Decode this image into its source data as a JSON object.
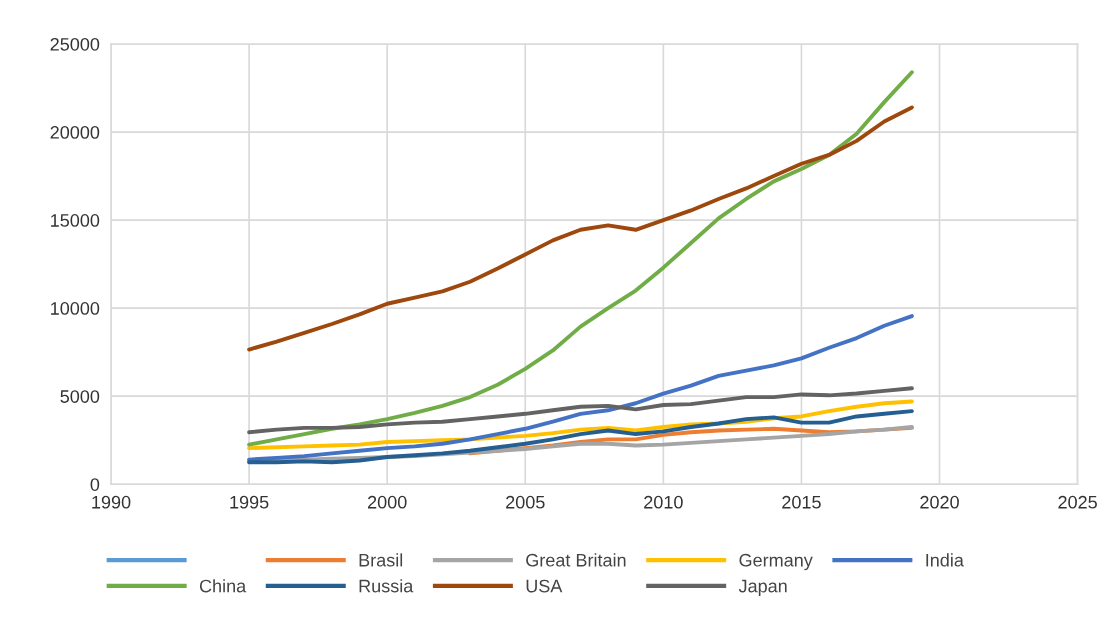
{
  "chart_data": {
    "type": "line",
    "x": [
      1995,
      1996,
      1997,
      1998,
      1999,
      2000,
      2001,
      2002,
      2003,
      2004,
      2005,
      2006,
      2007,
      2008,
      2009,
      2010,
      2011,
      2012,
      2013,
      2014,
      2015,
      2016,
      2017,
      2018,
      2019
    ],
    "series": [
      {
        "color": "#5b9bd5",
        "values": [
          null,
          null,
          null,
          null,
          null,
          null,
          null,
          null,
          null,
          null,
          null,
          null,
          null,
          null,
          null,
          null,
          null,
          null,
          null,
          null,
          null,
          null,
          null,
          null,
          null
        ]
      },
      {
        "name": "Brasil",
        "color": "#ed7d31",
        "values": [
          null,
          null,
          null,
          null,
          null,
          null,
          null,
          null,
          1750,
          1900,
          2050,
          2200,
          2400,
          2550,
          2550,
          2800,
          2950,
          3050,
          3100,
          3150,
          3050,
          2950,
          3000,
          3100,
          3200
        ]
      },
      {
        "name": "Great Britain",
        "color": "#a5a5a5",
        "values": [
          1300,
          1350,
          1400,
          1450,
          1500,
          1550,
          1600,
          1700,
          1800,
          1900,
          2000,
          2150,
          2300,
          2300,
          2200,
          2250,
          2350,
          2450,
          2550,
          2650,
          2750,
          2850,
          3000,
          3100,
          3250
        ]
      },
      {
        "name": "Germany",
        "color": "#ffc000",
        "values": [
          2050,
          2100,
          2150,
          2200,
          2250,
          2400,
          2450,
          2500,
          2550,
          2650,
          2750,
          2900,
          3100,
          3200,
          3050,
          3250,
          3400,
          3450,
          3550,
          3750,
          3850,
          4150,
          4400,
          4600,
          4700
        ]
      },
      {
        "name": "India",
        "color": "#4472c4",
        "values": [
          1400,
          1500,
          1600,
          1750,
          1900,
          2050,
          2150,
          2300,
          2550,
          2850,
          3150,
          3550,
          4000,
          4200,
          4600,
          5150,
          5600,
          6150,
          6450,
          6750,
          7150,
          7750,
          8300,
          9000,
          9550
        ]
      },
      {
        "name": "China",
        "color": "#70ad47",
        "values": [
          2250,
          2550,
          2850,
          3150,
          3400,
          3700,
          4050,
          4450,
          4950,
          5650,
          6550,
          7600,
          8950,
          10000,
          11000,
          12300,
          13700,
          15100,
          16200,
          17200,
          17900,
          18700,
          19900,
          21700,
          23400
        ]
      },
      {
        "name": "Russia",
        "color": "#255e91",
        "values": [
          1250,
          1250,
          1300,
          1250,
          1350,
          1550,
          1650,
          1750,
          1900,
          2100,
          2300,
          2550,
          2850,
          3050,
          2850,
          3000,
          3250,
          3450,
          3700,
          3800,
          3500,
          3500,
          3850,
          4000,
          4150
        ]
      },
      {
        "name": "USA",
        "color": "#9e480e",
        "values": [
          7650,
          8100,
          8600,
          9100,
          9650,
          10250,
          10600,
          10950,
          11500,
          12250,
          13050,
          13850,
          14450,
          14700,
          14450,
          15000,
          15550,
          16200,
          16800,
          17500,
          18200,
          18700,
          19500,
          20600,
          21400
        ]
      },
      {
        "name": "Japan",
        "color": "#636363",
        "values": [
          2950,
          3100,
          3200,
          3200,
          3250,
          3400,
          3500,
          3550,
          3700,
          3850,
          4000,
          4200,
          4400,
          4450,
          4250,
          4500,
          4550,
          4750,
          4950,
          4950,
          5100,
          5050,
          5150,
          5300,
          5450
        ]
      }
    ],
    "xlim": [
      1990,
      2025
    ],
    "xticks": [
      1990,
      1995,
      2000,
      2005,
      2010,
      2015,
      2020,
      2025
    ],
    "ylim": [
      0,
      25000
    ],
    "yticks": [
      0,
      5000,
      10000,
      15000,
      20000,
      25000
    ],
    "grid": true,
    "legend": "bottom",
    "marker": "none",
    "line_style": "solid"
  }
}
